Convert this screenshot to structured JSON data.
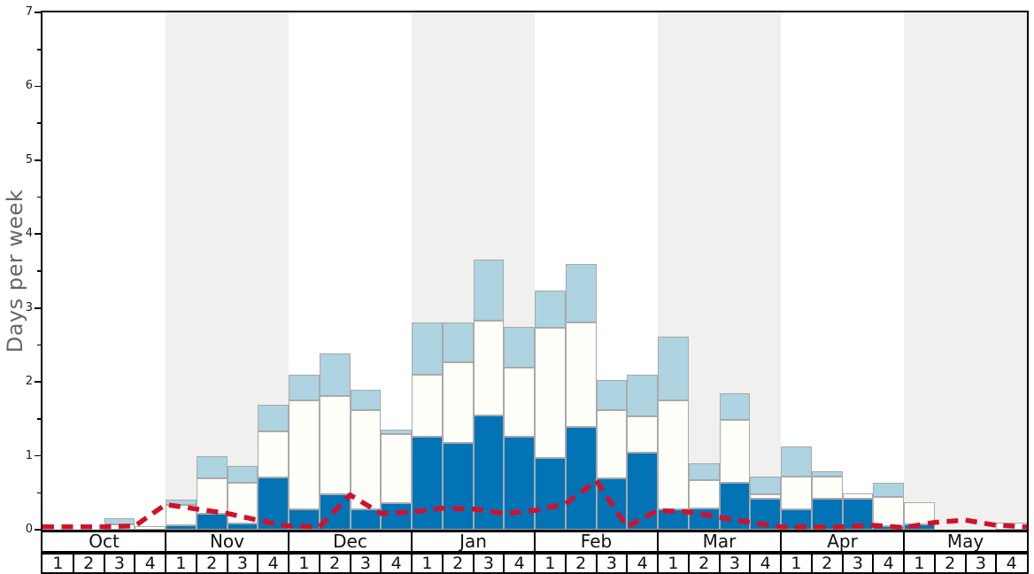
{
  "chart_data": {
    "type": "combo-stacked-bar-line",
    "title": "",
    "ylabel": "Days per week",
    "ylim": [
      0,
      7
    ],
    "y_ticks": [
      0,
      1,
      2,
      3,
      4,
      5,
      6,
      7
    ],
    "y_minor_step": 0.5,
    "months": [
      "Oct",
      "Nov",
      "Dec",
      "Jan",
      "Feb",
      "Mar",
      "Apr",
      "May"
    ],
    "shaded_months": [
      "Nov",
      "Jan",
      "Mar",
      "May"
    ],
    "week_labels": [
      "1",
      "2",
      "3",
      "4"
    ],
    "legend_position": "none",
    "grid": false,
    "series_note": "stacked bars: dark/white/light values are cumulative tops in days-per-week; red_line values sampled at the 33 week boundaries",
    "bars": [
      {
        "month": "Oct",
        "week": 1,
        "dark": 0,
        "white": 0,
        "light": 0
      },
      {
        "month": "Oct",
        "week": 2,
        "dark": 0,
        "white": 0,
        "light": 0
      },
      {
        "month": "Oct",
        "week": 3,
        "dark": 0,
        "white": 0.07,
        "light": 0.15
      },
      {
        "month": "Oct",
        "week": 4,
        "dark": 0,
        "white": 0.05,
        "light": 0.05
      },
      {
        "month": "Nov",
        "week": 1,
        "dark": 0.06,
        "white": 0.34,
        "light": 0.41
      },
      {
        "month": "Nov",
        "week": 2,
        "dark": 0.22,
        "white": 0.7,
        "light": 0.99
      },
      {
        "month": "Nov",
        "week": 3,
        "dark": 0.08,
        "white": 0.63,
        "light": 0.86
      },
      {
        "month": "Nov",
        "week": 4,
        "dark": 0.71,
        "white": 1.33,
        "light": 1.69
      },
      {
        "month": "Dec",
        "week": 1,
        "dark": 0.27,
        "white": 1.75,
        "light": 2.1
      },
      {
        "month": "Dec",
        "week": 2,
        "dark": 0.48,
        "white": 1.81,
        "light": 2.39
      },
      {
        "month": "Dec",
        "week": 3,
        "dark": 0.27,
        "white": 1.62,
        "light": 1.89
      },
      {
        "month": "Dec",
        "week": 4,
        "dark": 0.36,
        "white": 1.29,
        "light": 1.35
      },
      {
        "month": "Jan",
        "week": 1,
        "dark": 1.26,
        "white": 2.1,
        "light": 2.81
      },
      {
        "month": "Jan",
        "week": 2,
        "dark": 1.18,
        "white": 2.26,
        "light": 2.81
      },
      {
        "month": "Jan",
        "week": 3,
        "dark": 1.55,
        "white": 2.83,
        "light": 3.66
      },
      {
        "month": "Jan",
        "week": 4,
        "dark": 1.26,
        "white": 2.19,
        "light": 2.75
      },
      {
        "month": "Feb",
        "week": 1,
        "dark": 0.97,
        "white": 2.73,
        "light": 3.24
      },
      {
        "month": "Feb",
        "week": 2,
        "dark": 1.39,
        "white": 2.81,
        "light": 3.59
      },
      {
        "month": "Feb",
        "week": 3,
        "dark": 0.7,
        "white": 1.62,
        "light": 2.03
      },
      {
        "month": "Feb",
        "week": 4,
        "dark": 1.04,
        "white": 1.54,
        "light": 2.1
      },
      {
        "month": "Mar",
        "week": 1,
        "dark": 0.28,
        "white": 1.75,
        "light": 2.61
      },
      {
        "month": "Mar",
        "week": 2,
        "dark": 0.29,
        "white": 0.67,
        "light": 0.9
      },
      {
        "month": "Mar",
        "week": 3,
        "dark": 0.64,
        "white": 1.49,
        "light": 1.84
      },
      {
        "month": "Mar",
        "week": 4,
        "dark": 0.42,
        "white": 0.48,
        "light": 0.72
      },
      {
        "month": "Apr",
        "week": 1,
        "dark": 0.28,
        "white": 0.72,
        "light": 1.13
      },
      {
        "month": "Apr",
        "week": 2,
        "dark": 0.42,
        "white": 0.72,
        "light": 0.79
      },
      {
        "month": "Apr",
        "week": 3,
        "dark": 0.42,
        "white": 0.49,
        "light": 0.49
      },
      {
        "month": "Apr",
        "week": 4,
        "dark": 0.05,
        "white": 0.44,
        "light": 0.63
      },
      {
        "month": "May",
        "week": 1,
        "dark": 0.07,
        "white": 0.37,
        "light": 0.37
      },
      {
        "month": "May",
        "week": 2,
        "dark": 0,
        "white": 0,
        "light": 0
      },
      {
        "month": "May",
        "week": 3,
        "dark": 0,
        "white": 0,
        "light": 0
      },
      {
        "month": "May",
        "week": 4,
        "dark": 0,
        "white": 0.1,
        "light": 0.1
      }
    ],
    "red_line": [
      0.04,
      0.04,
      0.04,
      0.05,
      0.34,
      0.28,
      0.22,
      0.13,
      0.05,
      0.04,
      0.47,
      0.22,
      0.24,
      0.29,
      0.28,
      0.22,
      0.26,
      0.35,
      0.66,
      0.04,
      0.26,
      0.24,
      0.17,
      0.1,
      0.04,
      0.04,
      0.04,
      0.06,
      0.03,
      0.1,
      0.13,
      0.06,
      0.04
    ],
    "colors": {
      "dark_blue": "#0273b5",
      "bar_white": "#fffffa",
      "light_blue": "#aed3e1",
      "bar_border": "#a9a9a9",
      "red_line": "#d1112b",
      "band_gray": "#f0f0ef",
      "axis": "#000000",
      "ylabel_text": "#666666",
      "tick_text": "#1a1a1a"
    }
  }
}
